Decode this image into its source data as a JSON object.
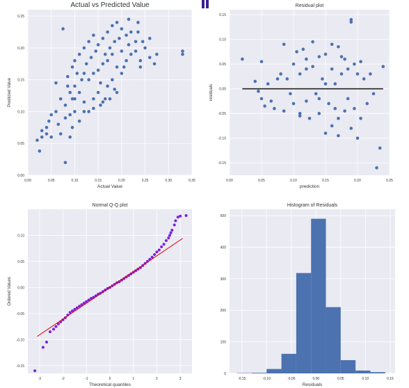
{
  "colors": {
    "panel_bg": "#eaeaf2",
    "grid": "#ffffff",
    "points": "#4c72b0",
    "qq_points": "#7d1ee0",
    "qq_line": "#e60000",
    "zero_line": "#222222",
    "bars": "#4c72b0",
    "text": "#333333"
  },
  "chart_data": [
    {
      "id": "avp",
      "type": "scatter",
      "title": "Actual vs Predicted Value",
      "xlabel": "Actual Value",
      "ylabel": "Predicted Value",
      "xlim": [
        0.0,
        0.35
      ],
      "ylim": [
        0.0,
        0.26
      ],
      "xticks": [
        0.0,
        0.05,
        0.1,
        0.15,
        0.2,
        0.25,
        0.3,
        0.35
      ],
      "xtick_labels": [
        "0.00",
        "0.05",
        "0.10",
        "0.15",
        "0.20",
        "0.25",
        "0.30",
        "0.35"
      ],
      "yticks": [
        0.0,
        0.05,
        0.1,
        0.15,
        0.2,
        0.25
      ],
      "ytick_labels": [
        "0.00",
        "0.05",
        "0.10",
        "0.15",
        "0.20",
        "0.25"
      ],
      "grid": true,
      "points": [
        [
          0.02,
          0.055
        ],
        [
          0.025,
          0.038
        ],
        [
          0.03,
          0.07
        ],
        [
          0.03,
          0.06
        ],
        [
          0.04,
          0.075
        ],
        [
          0.04,
          0.065
        ],
        [
          0.05,
          0.095
        ],
        [
          0.05,
          0.06
        ],
        [
          0.045,
          0.085
        ],
        [
          0.06,
          0.1
        ],
        [
          0.06,
          0.145
        ],
        [
          0.065,
          0.08
        ],
        [
          0.07,
          0.065
        ],
        [
          0.07,
          0.12
        ],
        [
          0.075,
          0.23
        ],
        [
          0.08,
          0.11
        ],
        [
          0.08,
          0.09
        ],
        [
          0.08,
          0.02
        ],
        [
          0.085,
          0.14
        ],
        [
          0.085,
          0.155
        ],
        [
          0.09,
          0.095
        ],
        [
          0.09,
          0.13
        ],
        [
          0.09,
          0.06
        ],
        [
          0.095,
          0.17
        ],
        [
          0.095,
          0.12
        ],
        [
          0.1,
          0.18
        ],
        [
          0.1,
          0.14
        ],
        [
          0.1,
          0.1
        ],
        [
          0.105,
          0.16
        ],
        [
          0.11,
          0.19
        ],
        [
          0.11,
          0.13
        ],
        [
          0.11,
          0.085
        ],
        [
          0.115,
          0.15
        ],
        [
          0.12,
          0.2
        ],
        [
          0.12,
          0.16
        ],
        [
          0.12,
          0.115
        ],
        [
          0.125,
          0.175
        ],
        [
          0.13,
          0.21
        ],
        [
          0.13,
          0.15
        ],
        [
          0.13,
          0.1
        ],
        [
          0.135,
          0.185
        ],
        [
          0.14,
          0.22
        ],
        [
          0.14,
          0.16
        ],
        [
          0.14,
          0.12
        ],
        [
          0.145,
          0.195
        ],
        [
          0.15,
          0.205
        ],
        [
          0.15,
          0.165
        ],
        [
          0.15,
          0.13
        ],
        [
          0.155,
          0.145
        ],
        [
          0.16,
          0.215
        ],
        [
          0.16,
          0.175
        ],
        [
          0.16,
          0.115
        ],
        [
          0.165,
          0.19
        ],
        [
          0.17,
          0.225
        ],
        [
          0.17,
          0.18
        ],
        [
          0.17,
          0.14
        ],
        [
          0.175,
          0.2
        ],
        [
          0.18,
          0.235
        ],
        [
          0.18,
          0.19
        ],
        [
          0.18,
          0.15
        ],
        [
          0.185,
          0.21
        ],
        [
          0.19,
          0.24
        ],
        [
          0.19,
          0.17
        ],
        [
          0.19,
          0.13
        ],
        [
          0.195,
          0.215
        ],
        [
          0.2,
          0.23
        ],
        [
          0.2,
          0.195
        ],
        [
          0.2,
          0.16
        ],
        [
          0.205,
          0.17
        ],
        [
          0.21,
          0.22
        ],
        [
          0.21,
          0.18
        ],
        [
          0.215,
          0.205
        ],
        [
          0.22,
          0.225
        ],
        [
          0.22,
          0.19
        ],
        [
          0.23,
          0.195
        ],
        [
          0.23,
          0.21
        ],
        [
          0.235,
          0.225
        ],
        [
          0.24,
          0.17
        ],
        [
          0.24,
          0.18
        ],
        [
          0.245,
          0.21
        ],
        [
          0.25,
          0.2
        ],
        [
          0.26,
          0.215
        ],
        [
          0.26,
          0.185
        ],
        [
          0.27,
          0.175
        ],
        [
          0.275,
          0.19
        ],
        [
          0.33,
          0.195
        ],
        [
          0.33,
          0.19
        ],
        [
          0.235,
          0.24
        ],
        [
          0.215,
          0.245
        ],
        [
          0.165,
          0.12
        ],
        [
          0.12,
          0.1
        ],
        [
          0.1,
          0.12
        ],
        [
          0.095,
          0.075
        ],
        [
          0.14,
          0.105
        ],
        [
          0.155,
          0.11
        ],
        [
          0.175,
          0.12
        ],
        [
          0.185,
          0.135
        ]
      ]
    },
    {
      "id": "resid",
      "type": "scatter",
      "title": "Residual plot",
      "xlabel": "prediction",
      "ylabel": "residuals",
      "xlim": [
        0.0,
        0.25
      ],
      "ylim": [
        -0.175,
        0.16
      ],
      "xticks": [
        0.0,
        0.05,
        0.1,
        0.15,
        0.2,
        0.25
      ],
      "xtick_labels": [
        "0.00",
        "0.05",
        "0.10",
        "0.15",
        "0.20",
        "0.25"
      ],
      "yticks": [
        -0.15,
        -0.1,
        -0.05,
        0.0,
        0.05,
        0.1,
        0.15
      ],
      "ytick_labels": [
        "-0.15",
        "-0.10",
        "-0.05",
        "0.00",
        "0.05",
        "0.10",
        "0.15"
      ],
      "hline": {
        "y": 0.0,
        "x_from": 0.02,
        "x_to": 0.24
      },
      "grid": true,
      "points": [
        [
          0.02,
          0.06
        ],
        [
          0.04,
          0.015
        ],
        [
          0.045,
          -0.005
        ],
        [
          0.05,
          -0.02
        ],
        [
          0.05,
          0.055
        ],
        [
          0.055,
          -0.035
        ],
        [
          0.06,
          0.01
        ],
        [
          0.065,
          -0.025
        ],
        [
          0.07,
          -0.04
        ],
        [
          0.075,
          0.02
        ],
        [
          0.08,
          0.03
        ],
        [
          0.085,
          0.09
        ],
        [
          0.085,
          -0.045
        ],
        [
          0.09,
          0.02
        ],
        [
          0.095,
          -0.01
        ],
        [
          0.1,
          0.05
        ],
        [
          0.1,
          -0.03
        ],
        [
          0.105,
          0.075
        ],
        [
          0.11,
          -0.05
        ],
        [
          0.11,
          0.03
        ],
        [
          0.115,
          0.08
        ],
        [
          0.12,
          -0.025
        ],
        [
          0.12,
          0.06
        ],
        [
          0.125,
          -0.06
        ],
        [
          0.13,
          0.045
        ],
        [
          0.135,
          -0.01
        ],
        [
          0.14,
          0.065
        ],
        [
          0.14,
          -0.05
        ],
        [
          0.145,
          0.02
        ],
        [
          0.15,
          -0.09
        ],
        [
          0.15,
          0.07
        ],
        [
          0.155,
          -0.03
        ],
        [
          0.16,
          0.04
        ],
        [
          0.16,
          -0.075
        ],
        [
          0.165,
          0.01
        ],
        [
          0.17,
          0.085
        ],
        [
          0.17,
          -0.06
        ],
        [
          0.175,
          0.03
        ],
        [
          0.18,
          -0.045
        ],
        [
          0.18,
          0.06
        ],
        [
          0.185,
          -0.02
        ],
        [
          0.19,
          0.14
        ],
        [
          0.19,
          0.135
        ],
        [
          0.19,
          -0.08
        ],
        [
          0.195,
          0.05
        ],
        [
          0.2,
          -0.1
        ],
        [
          0.2,
          0.03
        ],
        [
          0.205,
          -0.06
        ],
        [
          0.21,
          0.02
        ],
        [
          0.22,
          0.03
        ],
        [
          0.225,
          -0.01
        ],
        [
          0.23,
          -0.16
        ],
        [
          0.235,
          -0.12
        ],
        [
          0.24,
          0.045
        ],
        [
          0.17,
          -0.095
        ],
        [
          0.16,
          0.09
        ],
        [
          0.13,
          0.095
        ],
        [
          0.11,
          -0.055
        ],
        [
          0.12,
          0.04
        ],
        [
          0.14,
          -0.02
        ],
        [
          0.15,
          0.01
        ],
        [
          0.165,
          -0.04
        ],
        [
          0.175,
          0.065
        ],
        [
          0.185,
          0.04
        ],
        [
          0.195,
          -0.04
        ],
        [
          0.205,
          0.055
        ],
        [
          0.215,
          -0.03
        ]
      ]
    },
    {
      "id": "qq",
      "type": "scatter",
      "title": "Normal Q-Q plot",
      "xlabel": "Theoretical quantiles",
      "ylabel": "Ordered Values",
      "xlim": [
        -3.5,
        3.5
      ],
      "ylim": [
        -0.165,
        0.15
      ],
      "xticks": [
        -3,
        -2,
        -1,
        0,
        1,
        2,
        3
      ],
      "xtick_labels": [
        "-3",
        "-2",
        "-1",
        "0",
        "1",
        "2",
        "3"
      ],
      "yticks": [
        -0.15,
        -0.1,
        -0.05,
        0.0,
        0.05,
        0.1
      ],
      "ytick_labels": [
        "-0.15",
        "-0.10",
        "-0.05",
        "0.00",
        "0.05",
        "0.10"
      ],
      "fit_line": {
        "x": [
          -3.1,
          3.1
        ],
        "y": [
          -0.094,
          0.094
        ]
      },
      "grid": true,
      "points": [
        [
          -3.2,
          -0.16
        ],
        [
          -2.85,
          -0.115
        ],
        [
          -2.7,
          -0.105
        ],
        [
          -2.55,
          -0.085
        ],
        [
          -2.4,
          -0.08
        ],
        [
          -2.3,
          -0.075
        ],
        [
          -2.2,
          -0.07
        ],
        [
          -2.1,
          -0.066
        ],
        [
          -2.0,
          -0.062
        ],
        [
          -1.9,
          -0.058
        ],
        [
          -1.8,
          -0.053
        ],
        [
          -1.7,
          -0.048
        ],
        [
          -1.6,
          -0.045
        ],
        [
          -1.5,
          -0.042
        ],
        [
          -1.4,
          -0.039
        ],
        [
          -1.3,
          -0.036
        ],
        [
          -1.2,
          -0.033
        ],
        [
          -1.1,
          -0.03
        ],
        [
          -1.0,
          -0.027
        ],
        [
          -0.9,
          -0.024
        ],
        [
          -0.8,
          -0.021
        ],
        [
          -0.7,
          -0.019
        ],
        [
          -0.6,
          -0.016
        ],
        [
          -0.5,
          -0.013
        ],
        [
          -0.4,
          -0.011
        ],
        [
          -0.3,
          -0.008
        ],
        [
          -0.2,
          -0.005
        ],
        [
          -0.1,
          -0.002
        ],
        [
          0.0,
          0.0
        ],
        [
          0.1,
          0.003
        ],
        [
          0.2,
          0.006
        ],
        [
          0.3,
          0.009
        ],
        [
          0.4,
          0.011
        ],
        [
          0.5,
          0.014
        ],
        [
          0.6,
          0.017
        ],
        [
          0.7,
          0.02
        ],
        [
          0.8,
          0.023
        ],
        [
          0.9,
          0.026
        ],
        [
          1.0,
          0.029
        ],
        [
          1.1,
          0.032
        ],
        [
          1.2,
          0.035
        ],
        [
          1.3,
          0.038
        ],
        [
          1.4,
          0.042
        ],
        [
          1.5,
          0.046
        ],
        [
          1.6,
          0.05
        ],
        [
          1.7,
          0.054
        ],
        [
          1.8,
          0.058
        ],
        [
          1.9,
          0.063
        ],
        [
          2.0,
          0.068
        ],
        [
          2.1,
          0.072
        ],
        [
          2.2,
          0.078
        ],
        [
          2.3,
          0.083
        ],
        [
          2.4,
          0.09
        ],
        [
          2.5,
          0.095
        ],
        [
          2.55,
          0.1
        ],
        [
          2.6,
          0.105
        ],
        [
          2.65,
          0.11
        ],
        [
          2.9,
          0.135
        ],
        [
          3.0,
          0.137
        ],
        [
          3.25,
          0.138
        ],
        [
          2.75,
          0.12
        ],
        [
          2.8,
          0.128
        ]
      ]
    },
    {
      "id": "hist",
      "type": "bar",
      "title": "Histogram of Residuals",
      "xlabel": "Residuals",
      "ylabel": "",
      "xlim": [
        -0.175,
        0.16
      ],
      "ylim": [
        0,
        520
      ],
      "xticks": [
        -0.15,
        -0.1,
        -0.05,
        0.0,
        0.05,
        0.1,
        0.15
      ],
      "xtick_labels": [
        "-0.15",
        "-0.10",
        "-0.05",
        "0.00",
        "0.05",
        "0.10",
        "0.15"
      ],
      "yticks": [
        0,
        100,
        200,
        300,
        400,
        500
      ],
      "ytick_labels": [
        "0",
        "100",
        "200",
        "300",
        "400",
        "500"
      ],
      "grid": true,
      "bin_edges": [
        -0.16,
        -0.13,
        -0.1,
        -0.07,
        -0.04,
        -0.01,
        0.02,
        0.05,
        0.08,
        0.11,
        0.14
      ],
      "values": [
        1,
        2,
        14,
        62,
        318,
        490,
        210,
        42,
        9,
        4
      ]
    }
  ]
}
